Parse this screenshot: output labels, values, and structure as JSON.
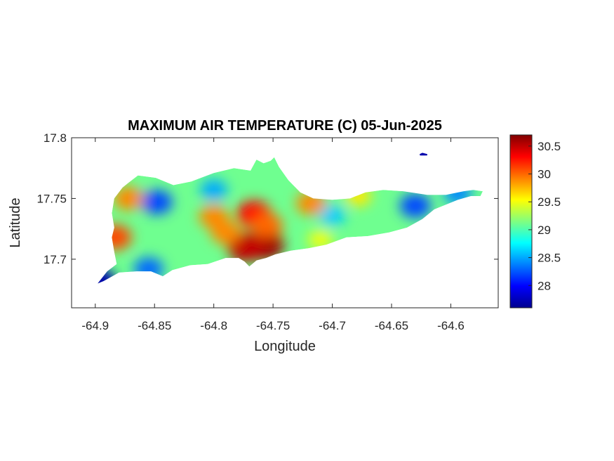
{
  "chart_data": {
    "type": "heatmap",
    "title": "MAXIMUM AIR TEMPERATURE (C) 05-Jun-2025",
    "xlabel": "Longitude",
    "ylabel": "Latitude",
    "xlim": [
      -64.92,
      -64.56
    ],
    "ylim": [
      17.66,
      17.8
    ],
    "xticks": [
      -64.9,
      -64.85,
      -64.8,
      -64.75,
      -64.7,
      -64.65,
      -64.6
    ],
    "xtick_labels": [
      "-64.9",
      "-64.85",
      "-64.8",
      "-64.75",
      "-64.7",
      "-64.65",
      "-64.6"
    ],
    "yticks": [
      17.7,
      17.75,
      17.8
    ],
    "ytick_labels": [
      "17.7",
      "17.75",
      "17.8"
    ],
    "colormap": "jet",
    "colorbar": {
      "clim": [
        27.6,
        30.7
      ],
      "ticks": [
        28,
        28.5,
        29,
        29.5,
        30,
        30.5
      ],
      "tick_labels": [
        "28",
        "28.5",
        "29",
        "29.5",
        "30",
        "30.5"
      ],
      "placement": "right"
    },
    "outline": [
      [
        -64.898,
        17.68
      ],
      [
        -64.89,
        17.69
      ],
      [
        -64.882,
        17.696
      ],
      [
        -64.884,
        17.706
      ],
      [
        -64.886,
        17.718
      ],
      [
        -64.884,
        17.726
      ],
      [
        -64.886,
        17.738
      ],
      [
        -64.884,
        17.75
      ],
      [
        -64.877,
        17.759
      ],
      [
        -64.872,
        17.763
      ],
      [
        -64.864,
        17.769
      ],
      [
        -64.849,
        17.767
      ],
      [
        -64.834,
        17.761
      ],
      [
        -64.819,
        17.764
      ],
      [
        -64.8,
        17.771
      ],
      [
        -64.783,
        17.775
      ],
      [
        -64.769,
        17.773
      ],
      [
        -64.764,
        17.782
      ],
      [
        -64.758,
        17.779
      ],
      [
        -64.752,
        17.781
      ],
      [
        -64.749,
        17.784
      ],
      [
        -64.745,
        17.776
      ],
      [
        -64.737,
        17.765
      ],
      [
        -64.727,
        17.755
      ],
      [
        -64.716,
        17.75
      ],
      [
        -64.7,
        17.749
      ],
      [
        -64.685,
        17.75
      ],
      [
        -64.672,
        17.755
      ],
      [
        -64.657,
        17.757
      ],
      [
        -64.64,
        17.756
      ],
      [
        -64.62,
        17.753
      ],
      [
        -64.604,
        17.753
      ],
      [
        -64.589,
        17.756
      ],
      [
        -64.581,
        17.757
      ],
      [
        -64.573,
        17.756
      ],
      [
        -64.575,
        17.752
      ],
      [
        -64.583,
        17.752
      ],
      [
        -64.594,
        17.749
      ],
      [
        -64.604,
        17.745
      ],
      [
        -64.614,
        17.741
      ],
      [
        -64.624,
        17.733
      ],
      [
        -64.637,
        17.726
      ],
      [
        -64.652,
        17.722
      ],
      [
        -64.67,
        17.719
      ],
      [
        -64.688,
        17.718
      ],
      [
        -64.705,
        17.712
      ],
      [
        -64.72,
        17.709
      ],
      [
        -64.735,
        17.707
      ],
      [
        -64.748,
        17.704
      ],
      [
        -64.756,
        17.701
      ],
      [
        -64.764,
        17.699
      ],
      [
        -64.77,
        17.694
      ],
      [
        -64.774,
        17.698
      ],
      [
        -64.779,
        17.701
      ],
      [
        -64.79,
        17.701
      ],
      [
        -64.805,
        17.696
      ],
      [
        -64.82,
        17.695
      ],
      [
        -64.835,
        17.691
      ],
      [
        -64.843,
        17.686
      ],
      [
        -64.853,
        17.69
      ],
      [
        -64.865,
        17.69
      ],
      [
        -64.88,
        17.689
      ],
      [
        -64.893,
        17.682
      ]
    ],
    "islet": [
      [
        -64.624,
        17.787
      ],
      [
        -64.62,
        17.786
      ],
      [
        -64.626,
        17.786
      ]
    ],
    "hotspots": [
      {
        "lon": -64.757,
        "lat": 17.712,
        "value": 30.6
      },
      {
        "lon": -64.773,
        "lat": 17.71,
        "value": 30.5
      },
      {
        "lon": -64.766,
        "lat": 17.737,
        "value": 30.3
      },
      {
        "lon": -64.755,
        "lat": 17.728,
        "value": 30.0
      },
      {
        "lon": -64.79,
        "lat": 17.722,
        "value": 29.9
      },
      {
        "lon": -64.8,
        "lat": 17.735,
        "value": 29.9
      },
      {
        "lon": -64.883,
        "lat": 17.718,
        "value": 30.1
      },
      {
        "lon": -64.872,
        "lat": 17.75,
        "value": 29.9
      },
      {
        "lon": -64.718,
        "lat": 17.746,
        "value": 29.9
      },
      {
        "lon": -64.678,
        "lat": 17.752,
        "value": 29.6
      },
      {
        "lon": -64.71,
        "lat": 17.716,
        "value": 29.5
      }
    ],
    "coldspots": [
      {
        "lon": -64.848,
        "lat": 17.747,
        "value": 28.2
      },
      {
        "lon": -64.8,
        "lat": 17.757,
        "value": 28.5
      },
      {
        "lon": -64.855,
        "lat": 17.692,
        "value": 28.3
      },
      {
        "lon": -64.7,
        "lat": 17.736,
        "value": 28.6
      },
      {
        "lon": -64.63,
        "lat": 17.744,
        "value": 28.2
      },
      {
        "lon": -64.898,
        "lat": 17.681,
        "value": 27.7
      },
      {
        "lon": -64.594,
        "lat": 17.754,
        "value": 28.4
      },
      {
        "lon": -64.624,
        "lat": 17.787,
        "value": 27.7
      }
    ],
    "background_value": 29.1
  }
}
